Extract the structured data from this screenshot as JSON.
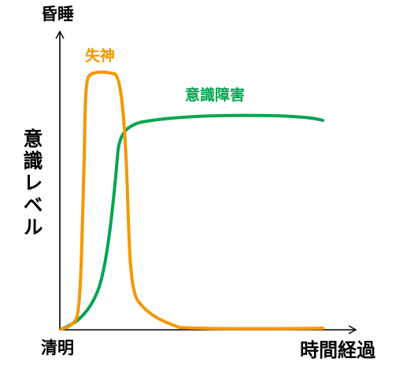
{
  "chart_data": {
    "type": "line",
    "y_axis": {
      "label": "意識レベル",
      "top_label": "昏睡",
      "bottom_label": "清明"
    },
    "x_axis": {
      "label": "時間経過"
    },
    "series": [
      {
        "name": "失神",
        "color": "#f39800"
      },
      {
        "name": "意識障害",
        "color": "#00a550"
      }
    ],
    "colors": {
      "axis": "#000000"
    }
  }
}
